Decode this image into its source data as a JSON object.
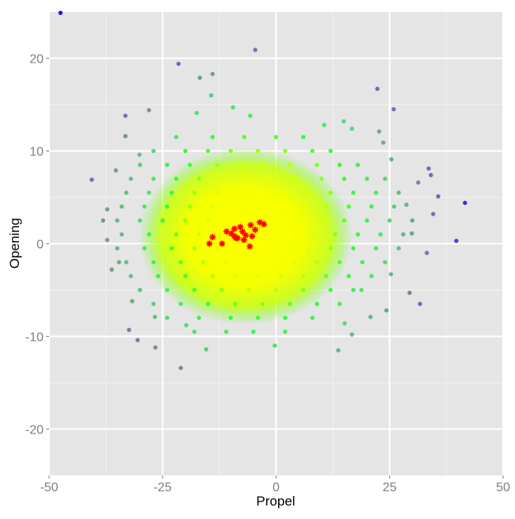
{
  "chart_data": {
    "type": "scatter",
    "x_label": "Propel",
    "y_label": "Opening",
    "xlim": [
      -50,
      50
    ],
    "ylim": [
      -25,
      25
    ],
    "xticks": [
      -50,
      -25,
      0,
      25,
      50
    ],
    "yticks": [
      -20,
      -10,
      0,
      10,
      20
    ],
    "minor_xticks": [
      -37.5,
      -12.5,
      12.5,
      37.5
    ],
    "minor_yticks": [
      -15,
      -5,
      5,
      15
    ],
    "grid": true,
    "color_scale": [
      "#ffff00",
      "#ccff00",
      "#33ff33",
      "#55dd77",
      "#77998f",
      "#6655cc",
      "#3300ff"
    ],
    "series": [
      {
        "marker": "dot",
        "x": [
          -47.5,
          -4.6,
          -21.5,
          -14,
          -16.8,
          22.3,
          25.9,
          -14.3,
          -28,
          -33.2,
          -17.5,
          -9.5,
          22.7,
          23.6,
          25.4,
          33.6,
          34.1,
          35.7,
          41.6,
          34.6,
          39.7,
          31.7,
          29.4,
          33.2,
          29.9,
          28.7,
          31.3,
          -40.6,
          -38.1,
          -36.2,
          -32.4,
          -30.5,
          -21,
          -26.6,
          -15.4,
          -0.3,
          13.7,
          16.7,
          20.8,
          24.3,
          18.8,
          25.3,
          15.1,
          14.9,
          16.7,
          10.6,
          -5.7,
          -30.1,
          -33.2,
          -35.3,
          -37.2,
          -37.2,
          -34.6,
          -31.7,
          -26.7,
          -19.8,
          -22,
          -14,
          -7,
          0,
          6,
          -27,
          -20,
          -15,
          -10,
          -4,
          2,
          8,
          12,
          -30,
          -24,
          -19,
          -13,
          -8,
          -3,
          3,
          9,
          14,
          18,
          -32,
          -27,
          -22,
          -17,
          -12,
          -6,
          -1,
          4,
          10,
          15,
          20,
          24,
          -33,
          -28,
          -23,
          -18,
          -13,
          -8,
          -3,
          2,
          7,
          12,
          17,
          22,
          27,
          -34,
          -29,
          -24,
          -19,
          -14,
          -9,
          -4,
          1,
          6,
          11,
          16,
          21,
          26,
          -35,
          -30,
          -25,
          -20,
          -15,
          -10,
          -5,
          0,
          5,
          10,
          15,
          20,
          25,
          30,
          -34,
          -28,
          -22,
          -17,
          -12,
          -7,
          -2,
          3,
          8,
          13,
          18,
          23,
          28,
          -35,
          -29,
          -23,
          -18,
          -13,
          -8,
          -3,
          2,
          7,
          12,
          17,
          22,
          27,
          -33,
          -27,
          -21,
          -16,
          -11,
          -6,
          -1,
          4,
          9,
          14,
          19,
          24,
          -32,
          -26,
          -20,
          -14,
          -9,
          -4,
          1,
          6,
          11,
          16,
          21,
          -30,
          -24,
          -18,
          -12,
          -6,
          0,
          6,
          12,
          17,
          -27,
          -21,
          -15,
          -9,
          -3,
          3,
          9,
          14,
          -24,
          -17,
          -10,
          -4,
          2,
          8,
          -18,
          -11,
          -5,
          2
        ],
        "y": [
          24.9,
          20.9,
          19.4,
          18.3,
          17.9,
          16.7,
          14.5,
          16,
          14.4,
          13.8,
          14.1,
          14.7,
          12.1,
          10.9,
          9.1,
          8.1,
          7.4,
          5.1,
          4.4,
          3.2,
          0.3,
          -6.5,
          -5.3,
          -1,
          1.1,
          4.2,
          6.6,
          6.9,
          2.5,
          -2.8,
          -9.3,
          -10.4,
          -13.4,
          -11.2,
          -11.4,
          -11,
          -11.5,
          -9.8,
          -7.9,
          -7.2,
          -5,
          -3.3,
          -8.6,
          13.2,
          12.4,
          12.8,
          13.8,
          9.6,
          11.6,
          7.9,
          3.7,
          0.4,
          -2,
          -6.2,
          -7.9,
          -8.8,
          11.5,
          11.5,
          11.5,
          11.5,
          11.5,
          10,
          10,
          10,
          10,
          10,
          10,
          10,
          10,
          8.5,
          8.5,
          8.5,
          8.5,
          8.5,
          8.5,
          8.5,
          8.5,
          8.5,
          8.5,
          7,
          7,
          7,
          7,
          7,
          7,
          7,
          7,
          7,
          7,
          7,
          7,
          5.5,
          5.5,
          5.5,
          5.5,
          5.5,
          5.5,
          5.5,
          5.5,
          5.5,
          5.5,
          5.5,
          5.5,
          5.5,
          4,
          4,
          4,
          4,
          4,
          4,
          4,
          4,
          4,
          4,
          4,
          4,
          4,
          2.5,
          2.5,
          2.5,
          2.5,
          2.5,
          2.5,
          2.5,
          2.5,
          2.5,
          2.5,
          2.5,
          2.5,
          2.5,
          2.5,
          1,
          1,
          1,
          1,
          1,
          1,
          1,
          1,
          1,
          1,
          1,
          1,
          1,
          -0.5,
          -0.5,
          -0.5,
          -0.5,
          -0.5,
          -0.5,
          -0.5,
          -0.5,
          -0.5,
          -0.5,
          -0.5,
          -0.5,
          -0.5,
          -2,
          -2,
          -2,
          -2,
          -2,
          -2,
          -2,
          -2,
          -2,
          -2,
          -2,
          -2,
          -3.5,
          -3.5,
          -3.5,
          -3.5,
          -3.5,
          -3.5,
          -3.5,
          -3.5,
          -3.5,
          -3.5,
          -3.5,
          -5,
          -5,
          -5,
          -5,
          -5,
          -5,
          -5,
          -5,
          -5,
          -6.5,
          -6.5,
          -6.5,
          -6.5,
          -6.5,
          -6.5,
          -6.5,
          -6.5,
          -8,
          -8,
          -8,
          -8,
          -8,
          -8,
          -9.5,
          -9.5,
          -9.5,
          -9.5
        ]
      },
      {
        "marker": "star",
        "color": "#ff0000",
        "x": [
          -14.7,
          -14,
          -11.9,
          -10.9,
          -9.2,
          -9.2,
          -7.9,
          -7.4,
          -8.5,
          -7.1,
          -9.9,
          -5.8,
          -5.3,
          -5.6,
          -4.6,
          -3.6,
          -2.7,
          -6.7,
          -8.8
        ],
        "y": [
          0,
          0.7,
          0,
          1.3,
          0.8,
          1.6,
          1.8,
          1.3,
          0.6,
          0.4,
          1.1,
          -0.3,
          0.8,
          2,
          1.5,
          2.3,
          2.1,
          0.9,
          0.6
        ]
      }
    ]
  }
}
